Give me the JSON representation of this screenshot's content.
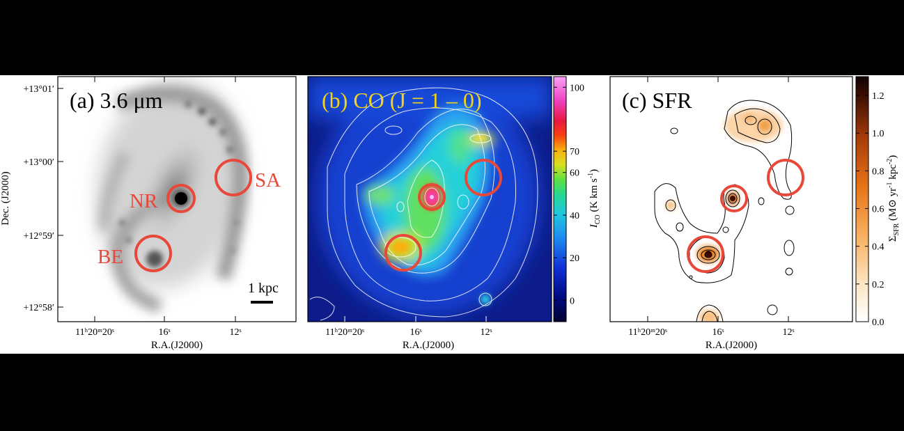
{
  "panels": [
    {
      "id": "a",
      "title": "(a) 3.6 μm",
      "x_ticks": [
        "11ʰ20ᵐ20ˢ",
        "16ˢ",
        "12ˢ"
      ],
      "y_ticks": [
        "+13°01′",
        "+13°00′",
        "+12°59′",
        "+12°58′"
      ],
      "x_label": "R.A.(J2000)",
      "y_label": "Dec. (J2000)",
      "regions": [
        {
          "label": "NR"
        },
        {
          "label": "SA"
        },
        {
          "label": "BE"
        }
      ],
      "scale_bar_label": "1 kpc"
    },
    {
      "id": "b",
      "title": "(b) CO (J = 1 – 0)",
      "x_ticks": [
        "11ʰ20ᵐ20ˢ",
        "16ˢ",
        "12ˢ"
      ],
      "x_label": "R.A.(J2000)",
      "colorbar": {
        "label": "I_CO (K km s⁻¹)",
        "ticks": [
          0,
          20,
          40,
          60,
          70,
          100
        ],
        "range": [
          -10,
          105
        ]
      }
    },
    {
      "id": "c",
      "title": "(c) SFR",
      "x_ticks": [
        "11ʰ20ᵐ20ˢ",
        "16ˢ",
        "12ˢ"
      ],
      "x_label": "R.A.(J2000)",
      "colorbar": {
        "label": "Σ_SFR (M⊙ yr⁻¹ kpc⁻²)",
        "ticks": [
          "0.0",
          "0.2",
          "0.4",
          "0.6",
          "0.8",
          "1.0",
          "1.2"
        ],
        "range": [
          0,
          1.3
        ]
      }
    }
  ],
  "colors": {
    "region_circle": "#e8483a",
    "panel_b_title": "#f2d21a",
    "background": "#000000"
  }
}
